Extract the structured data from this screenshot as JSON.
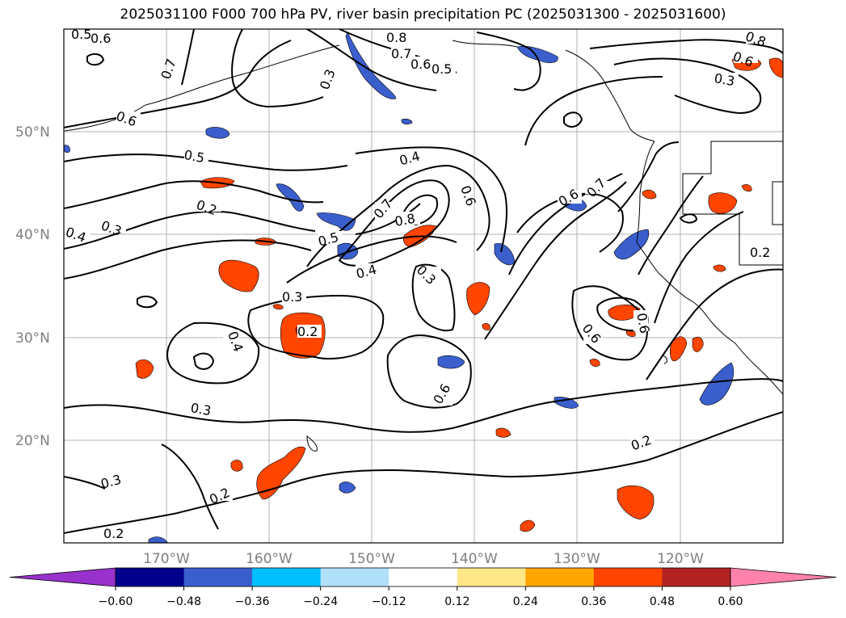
{
  "title": "2025031100 F000 700 hPa PV, river basin precipitation PC (2025031300 - 2025031600)",
  "latitude_labels": [
    "50°N",
    "40°N",
    "30°N",
    "20°N"
  ],
  "longitude_labels": [
    "170°W",
    "160°W",
    "150°W",
    "140°W",
    "130°W",
    "120°W"
  ],
  "contour_labels": [
    "0.5",
    "0.6",
    "0.7",
    "0.3",
    "0.8",
    "0.7",
    "0.6",
    "0.5",
    "0.8",
    "0.6",
    "0.3",
    "0.6",
    "0.5",
    "0.4",
    "0.2",
    "0.6",
    "0.7",
    "0.4",
    "0.3",
    "0.7",
    "0.8",
    "0.6",
    "0.5",
    "0.4",
    "0.3",
    "0.3",
    "0.2",
    "0.4",
    "0.6",
    "0.3",
    "0.6",
    "0.2",
    "0.3",
    "0.2",
    "0.2",
    "0.6",
    "0.2"
  ],
  "colorbar": {
    "colors": [
      "#9932cc",
      "#00008b",
      "#3a5fcd",
      "#00bfff",
      "#b0e0fa",
      "#ffffff",
      "#ffe78a",
      "#ffa500",
      "#ff4500",
      "#b22222",
      "#ff82ab"
    ],
    "ticks": [
      "−0.60",
      "−0.48",
      "−0.36",
      "−0.24",
      "−0.12",
      "0.12",
      "0.24",
      "0.36",
      "0.48",
      "0.60"
    ]
  }
}
